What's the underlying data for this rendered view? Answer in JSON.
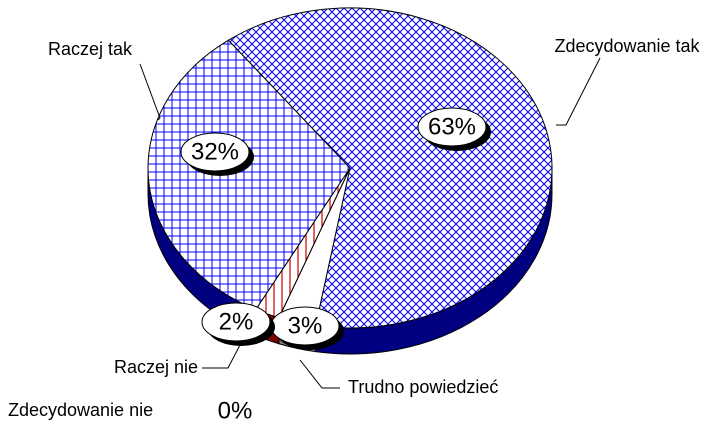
{
  "chart_data": {
    "type": "pie3d",
    "categories": [
      "Zdecydowanie tak",
      "Trudno powiedzieć",
      "Zdecydowanie nie",
      "Raczej nie",
      "Raczej tak"
    ],
    "values": [
      63,
      3,
      0,
      2,
      32
    ],
    "value_labels": [
      "63%",
      "3%",
      "0%",
      "2%",
      "32%"
    ],
    "colors": [
      "#0000ff",
      "#ffffff",
      "#ffffff",
      "#cc0000",
      "#0000ff"
    ],
    "side_colors": [
      "#000080",
      "#808080",
      "#808080",
      "#800000",
      "#000080"
    ]
  }
}
